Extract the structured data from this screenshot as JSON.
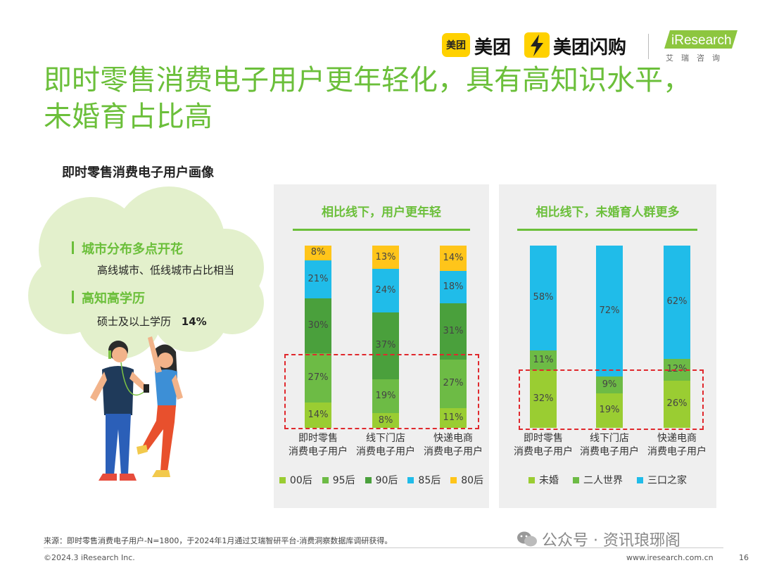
{
  "header": {
    "meituan_icon_text": "美团",
    "meituan_text": "美团",
    "shangou_text": "美团闪购",
    "iresearch_text": "iResearch",
    "iresearch_sub": "艾瑞咨询"
  },
  "title_line1": "即时零售消费电子用户更年轻化，具有高知识水平，",
  "title_line2": "未婚育占比高",
  "section_subtitle": "即时零售消费电子用户画像",
  "bullets": [
    {
      "title": "城市分布多点开花",
      "text": "高线城市、低线城市占比相当",
      "highlight": ""
    },
    {
      "title": "高知高学历",
      "text": "硕士及以上学历",
      "highlight": "14%"
    }
  ],
  "colors": {
    "green_light": "#9acd32",
    "green_mid": "#6dbb45",
    "green_dark": "#4aa03c",
    "cyan": "#20bce9",
    "yellow": "#ffc51a",
    "accent": "#6bbf3a"
  },
  "chart_data": [
    {
      "type": "bar",
      "stacked": true,
      "title": "相比线下，用户更年轻",
      "categories": [
        "即时零售\n消费电子用户",
        "线下门店\n消费电子用户",
        "快递电商\n消费电子用户"
      ],
      "series": [
        {
          "name": "00后",
          "values": [
            14,
            8,
            11
          ],
          "color": "#9acd32"
        },
        {
          "name": "95后",
          "values": [
            27,
            19,
            27
          ],
          "color": "#6dbb45"
        },
        {
          "name": "90后",
          "values": [
            30,
            37,
            31
          ],
          "color": "#4aa03c"
        },
        {
          "name": "85后",
          "values": [
            21,
            24,
            18
          ],
          "color": "#20bce9"
        },
        {
          "name": "80后",
          "values": [
            8,
            13,
            14
          ],
          "color": "#ffc51a"
        }
      ],
      "value_suffix": "%",
      "legend_position": "bottom"
    },
    {
      "type": "bar",
      "stacked": true,
      "title": "相比线下，未婚育人群更多",
      "categories": [
        "即时零售\n消费电子用户",
        "线下门店\n消费电子用户",
        "快递电商\n消费电子用户"
      ],
      "series": [
        {
          "name": "未婚",
          "values": [
            32,
            19,
            26
          ],
          "color": "#9acd32"
        },
        {
          "name": "二人世界",
          "values": [
            11,
            9,
            12
          ],
          "color": "#6dbb45"
        },
        {
          "name": "三口之家",
          "values": [
            58,
            72,
            62
          ],
          "color": "#20bce9"
        }
      ],
      "value_suffix": "%",
      "legend_position": "bottom"
    }
  ],
  "footer": {
    "source": "来源：即时零售消费电子用户-N=1800，于2024年1月通过艾瑞智研平台-消费洞察数据库调研获得。",
    "copyright": "©2024.3 iResearch Inc.",
    "website": "www.iresearch.com.cn",
    "page": "16",
    "watermark": "公众号 · 资讯琅琊阁"
  }
}
